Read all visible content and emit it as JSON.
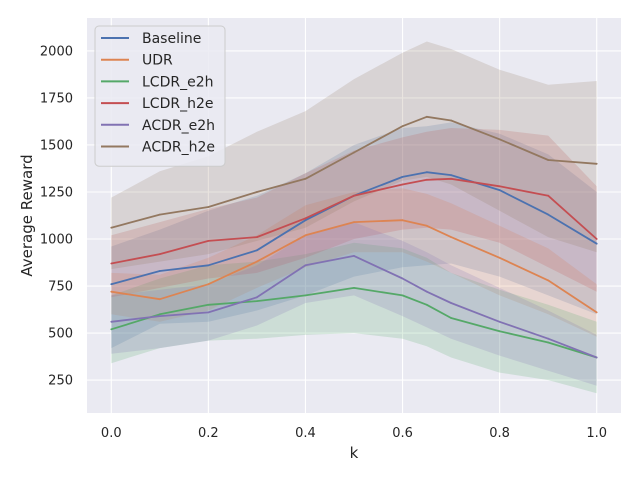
{
  "chart_data": {
    "type": "line",
    "title": "",
    "xlabel": "k",
    "ylabel": "Average Reward",
    "xlim": [
      -0.05,
      1.05
    ],
    "ylim": [
      75,
      2175
    ],
    "x_ticks": [
      0.0,
      0.2,
      0.4,
      0.6,
      0.8,
      1.0
    ],
    "x_tick_labels": [
      "0.0",
      "0.2",
      "0.4",
      "0.6",
      "0.8",
      "1.0"
    ],
    "y_ticks": [
      250,
      500,
      750,
      1000,
      1250,
      1500,
      1750,
      2000
    ],
    "y_tick_labels": [
      "250",
      "500",
      "750",
      "1000",
      "1250",
      "1500",
      "1750",
      "2000"
    ],
    "grid": true,
    "background": "#eaeaf2",
    "legend_position": "upper-left",
    "x": [
      0.0,
      0.1,
      0.2,
      0.3,
      0.4,
      0.5,
      0.6,
      0.65,
      0.7,
      0.8,
      0.9,
      1.0
    ],
    "series": [
      {
        "name": "Baseline",
        "color": "#4c72b0",
        "values": [
          760,
          830,
          860,
          940,
          1100,
          1230,
          1330,
          1355,
          1340,
          1260,
          1130,
          975
        ],
        "lower": [
          420,
          550,
          560,
          620,
          700,
          800,
          850,
          860,
          870,
          800,
          700,
          600
        ],
        "upper": [
          960,
          1050,
          1150,
          1230,
          1350,
          1500,
          1590,
          1600,
          1620,
          1560,
          1450,
          1250
        ]
      },
      {
        "name": "UDR",
        "color": "#dd8452",
        "values": [
          720,
          680,
          760,
          880,
          1020,
          1090,
          1100,
          1070,
          1010,
          900,
          780,
          610
        ],
        "lower": [
          600,
          560,
          620,
          740,
          850,
          930,
          930,
          880,
          820,
          700,
          600,
          480
        ],
        "upper": [
          820,
          810,
          900,
          1020,
          1180,
          1250,
          1270,
          1240,
          1190,
          1070,
          950,
          760
        ]
      },
      {
        "name": "LCDR_e2h",
        "color": "#55a868",
        "values": [
          520,
          600,
          650,
          670,
          700,
          740,
          700,
          650,
          580,
          510,
          450,
          370
        ],
        "lower": [
          340,
          420,
          460,
          470,
          490,
          500,
          470,
          430,
          370,
          290,
          250,
          180
        ],
        "upper": [
          700,
          790,
          860,
          880,
          920,
          980,
          950,
          900,
          820,
          730,
          650,
          560
        ]
      },
      {
        "name": "LCDR_h2e",
        "color": "#c44e52",
        "values": [
          870,
          920,
          990,
          1010,
          1110,
          1230,
          1290,
          1315,
          1320,
          1280,
          1230,
          1000
        ],
        "lower": [
          690,
          740,
          790,
          820,
          900,
          1000,
          1050,
          1060,
          1050,
          980,
          850,
          720
        ],
        "upper": [
          1020,
          1090,
          1160,
          1220,
          1350,
          1470,
          1540,
          1570,
          1590,
          1580,
          1550,
          1280
        ]
      },
      {
        "name": "ACDR_e2h",
        "color": "#8172b3",
        "values": [
          560,
          590,
          610,
          690,
          860,
          910,
          790,
          720,
          660,
          560,
          470,
          370
        ],
        "lower": [
          390,
          420,
          460,
          540,
          660,
          700,
          590,
          530,
          470,
          380,
          300,
          220
        ],
        "upper": [
          700,
          730,
          760,
          860,
          1020,
          1090,
          990,
          930,
          860,
          740,
          620,
          490
        ]
      },
      {
        "name": "ACDR_h2e",
        "color": "#937860",
        "values": [
          1060,
          1130,
          1170,
          1250,
          1320,
          1460,
          1600,
          1650,
          1630,
          1530,
          1420,
          1400
        ],
        "lower": [
          840,
          880,
          920,
          990,
          1060,
          1200,
          1310,
          1330,
          1290,
          1150,
          1010,
          930
        ],
        "upper": [
          1220,
          1360,
          1440,
          1570,
          1680,
          1850,
          1990,
          2050,
          2010,
          1900,
          1820,
          1840
        ]
      }
    ]
  }
}
